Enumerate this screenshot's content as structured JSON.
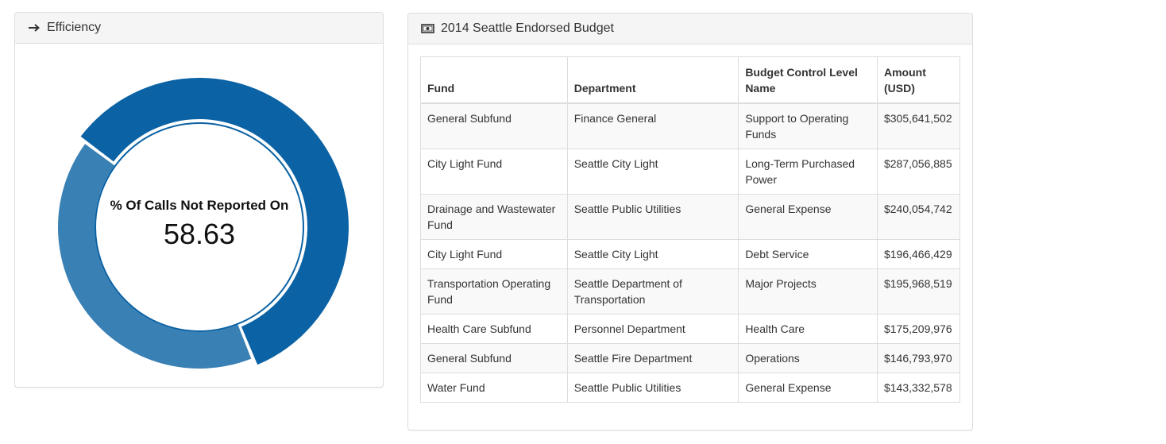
{
  "efficiency_panel": {
    "title": "Efficiency",
    "icon": "arrow-right-icon",
    "donut": {
      "label": "% Of Calls Not Reported On",
      "value_text": "58.63",
      "value_percent": 58.63,
      "colors": {
        "primary": "#0b62a4",
        "secondary": "#3980b5"
      }
    }
  },
  "budget_panel": {
    "title": "2014 Seattle Endorsed Budget",
    "icon": "money-icon",
    "columns": [
      "Fund",
      "Department",
      "Budget Control Level Name",
      "Amount (USD)"
    ],
    "rows": [
      [
        "General Subfund",
        "Finance General",
        "Support to Operating Funds",
        "$305,641,502"
      ],
      [
        "City Light Fund",
        "Seattle City Light",
        "Long-Term Purchased Power",
        "$287,056,885"
      ],
      [
        "Drainage and Wastewater Fund",
        "Seattle Public Utilities",
        "General Expense",
        "$240,054,742"
      ],
      [
        "City Light Fund",
        "Seattle City Light",
        "Debt Service",
        "$196,466,429"
      ],
      [
        "Transportation Operating Fund",
        "Seattle Department of Transportation",
        "Major Projects",
        "$195,968,519"
      ],
      [
        "Health Care Subfund",
        "Personnel Department",
        "Health Care",
        "$175,209,976"
      ],
      [
        "General Subfund",
        "Seattle Fire Department",
        "Operations",
        "$146,793,970"
      ],
      [
        "Water Fund",
        "Seattle Public Utilities",
        "General Expense",
        "$143,332,578"
      ]
    ]
  }
}
